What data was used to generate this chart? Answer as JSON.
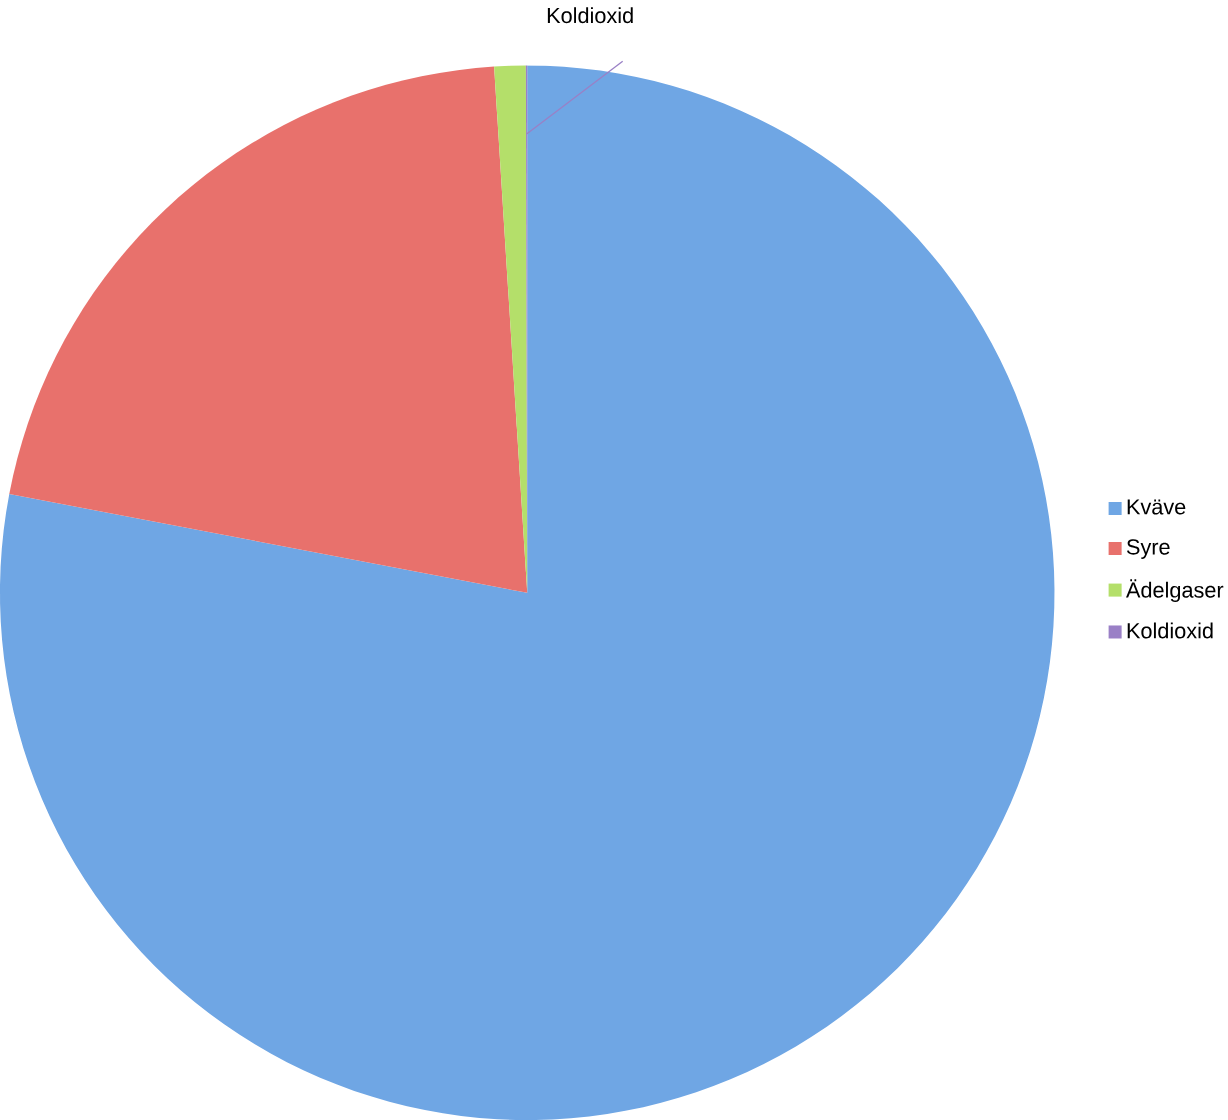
{
  "chart_data": {
    "type": "pie",
    "categories": [
      "Kväve",
      "Syre",
      "Ädelgaser",
      "Koldioxid"
    ],
    "values": [
      78,
      21,
      0.96,
      0.04
    ],
    "colors": [
      "#6fa6e4",
      "#e8716c",
      "#b4df6a",
      "#9a80c6"
    ],
    "annotations": [
      {
        "text": "Koldioxid",
        "x": "Koldioxid"
      }
    ],
    "legend": "right"
  }
}
